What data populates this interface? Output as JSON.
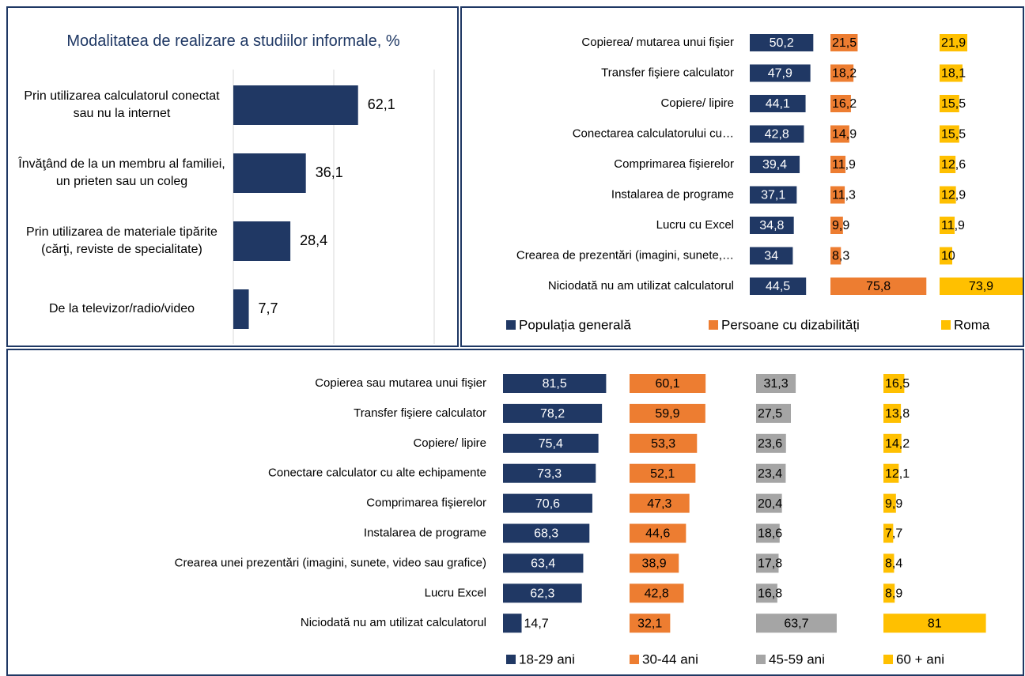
{
  "chart_data": [
    {
      "type": "hbar",
      "title": "Modalitatea de realizare a studiilor informale, %",
      "categories": [
        "Prin utilizarea calculatorul conectat sau nu la internet",
        "Învăţând de la un membru al familiei, un prieten sau un coleg",
        "Prin utilizarea de materiale tipărite (cărţi, reviste de specialitate)",
        "De la televizor/radio/video"
      ],
      "values": [
        62.1,
        36.1,
        28.4,
        7.7
      ],
      "value_labels": [
        "62,1",
        "36,1",
        "28,4",
        "7,7"
      ],
      "color": "#203864",
      "xlim": [
        0,
        100
      ],
      "xgrid": [
        0,
        50,
        100
      ]
    },
    {
      "type": "panel-bar",
      "categories": [
        "Copierea/ mutarea unui fişier",
        "Transfer fişiere calculator",
        "Copiere/ lipire",
        "Conectarea calculatorului cu…",
        "Comprimarea fişierelor",
        "Instalarea de programe",
        "Lucru cu  Excel",
        "Crearea de prezentări  (imagini, sunete,…",
        "Niciodată nu am utilizat calculatorul"
      ],
      "series": [
        {
          "name": "Populația generală",
          "color": "#203864",
          "values": [
            50.2,
            47.9,
            44.1,
            42.8,
            39.4,
            37.1,
            34.8,
            34,
            44.5
          ],
          "value_labels": [
            "50,2",
            "47,9",
            "44,1",
            "42,8",
            "39,4",
            "37,1",
            "34,8",
            "34",
            "44,5"
          ]
        },
        {
          "name": "Persoane cu dizabilități",
          "color": "#ed7d31",
          "values": [
            21.5,
            18.2,
            16.2,
            14.9,
            11.9,
            11.3,
            9.9,
            8.3,
            75.8
          ],
          "value_labels": [
            "21,5",
            "18,2",
            "16,2",
            "14,9",
            "11,9",
            "11,3",
            "9,9",
            "8,3",
            "75,8"
          ]
        },
        {
          "name": "Roma",
          "color": "#ffc000",
          "values": [
            21.9,
            18.1,
            15.5,
            15.5,
            12.6,
            12.9,
            11.9,
            10,
            73.9
          ],
          "value_labels": [
            "21,9",
            "18,1",
            "15,5",
            "15,5",
            "12,6",
            "12,9",
            "11,9",
            "10",
            "73,9"
          ]
        }
      ],
      "legend": "bottom"
    },
    {
      "type": "panel-bar",
      "categories": [
        "Copierea sau mutarea unui fişier",
        "Transfer fişiere  calculator",
        "Copiere/ lipire",
        "Conectare calculator cu alte echipamente",
        "Comprimarea fişierelor",
        "Instalarea de programe",
        "Crearea unei prezentări (imagini, sunete, video sau grafice)",
        "Lucru Excel",
        "Niciodată nu am utilizat calculatorul"
      ],
      "series": [
        {
          "name": "18-29 ani",
          "color": "#203864",
          "values": [
            81.5,
            78.2,
            75.4,
            73.3,
            70.6,
            68.3,
            63.4,
            62.3,
            14.7
          ],
          "value_labels": [
            "81,5",
            "78,2",
            "75,4",
            "73,3",
            "70,6",
            "68,3",
            "63,4",
            "62,3",
            "14,7"
          ]
        },
        {
          "name": "30-44 ani",
          "color": "#ed7d31",
          "values": [
            60.1,
            59.9,
            53.3,
            52.1,
            47.3,
            44.6,
            38.9,
            42.8,
            32.1
          ],
          "value_labels": [
            "60,1",
            "59,9",
            "53,3",
            "52,1",
            "47,3",
            "44,6",
            "38,9",
            "42,8",
            "32,1"
          ]
        },
        {
          "name": "45-59 ani",
          "color": "#a5a5a5",
          "values": [
            31.3,
            27.5,
            23.6,
            23.4,
            20.4,
            18.6,
            17.8,
            16.8,
            63.7
          ],
          "value_labels": [
            "31,3",
            "27,5",
            "23,6",
            "23,4",
            "20,4",
            "18,6",
            "17,8",
            "16,8",
            "63,7"
          ]
        },
        {
          "name": "60 + ani",
          "color": "#ffc000",
          "values": [
            16.5,
            13.8,
            14.2,
            12.1,
            9.9,
            7.7,
            8.4,
            8.9,
            81
          ],
          "value_labels": [
            "16,5",
            "13,8",
            "14,2",
            "12,1",
            "9,9",
            "7,7",
            "8,4",
            "8,9",
            "81"
          ]
        }
      ],
      "legend": "bottom"
    }
  ]
}
